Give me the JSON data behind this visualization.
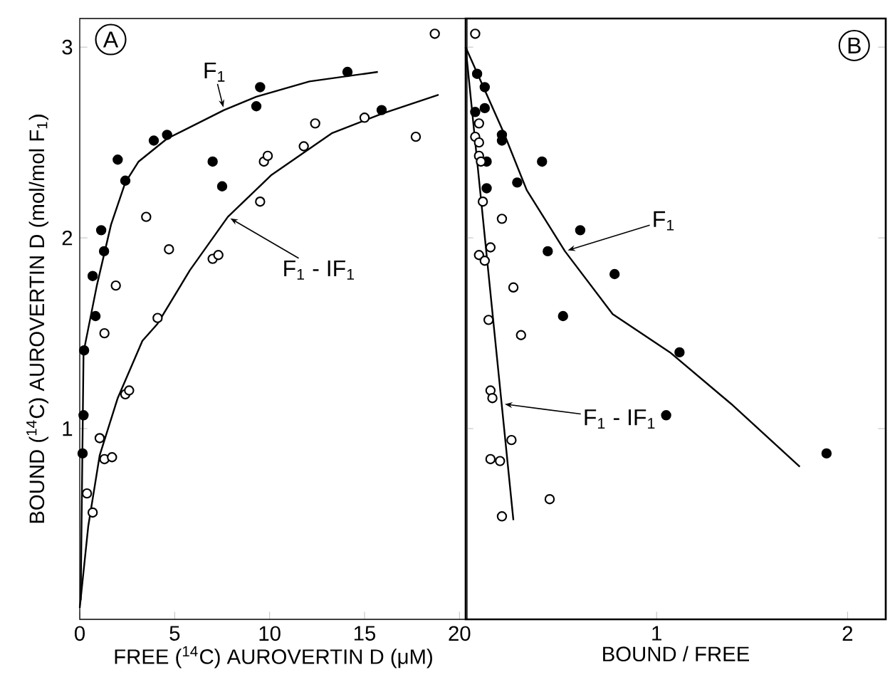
{
  "chart_data": [
    {
      "type": "scatter",
      "xlabel": "FREE ($^{14}$C) AUROVERTIN D (μM)",
      "ylabel": "BOUND ($^{14}$C) AUROVERTIN D (mol/mol F$_{1}$)",
      "marker": "circle",
      "xlim": [
        0,
        20.4
      ],
      "ylim": [
        0,
        3.15
      ],
      "xticks": [
        0,
        5,
        10,
        15,
        20
      ],
      "yticks": [
        1,
        2,
        3
      ],
      "series": [
        {
          "color": "#000000",
          "x": [
            0.23,
            0.2,
            0.15,
            0.83,
            0.68,
            1.28,
            1.13,
            2.0,
            2.4,
            3.9,
            4.6,
            7.0,
            7.5,
            9.3,
            9.5,
            14.1,
            15.9
          ],
          "values": [
            1.41,
            1.07,
            0.87,
            1.59,
            1.8,
            1.93,
            2.04,
            2.41,
            2.3,
            2.51,
            2.54,
            2.4,
            2.27,
            2.69,
            2.79,
            2.87,
            2.67
          ]
        },
        {
          "color": "#ffffff",
          "x": [
            18.7,
            3.5,
            4.7,
            1.9,
            4.1,
            1.3,
            7.0,
            7.3,
            9.5,
            9.7,
            9.9,
            11.8,
            12.4,
            15.0,
            17.7,
            2.4,
            2.6,
            1.05,
            1.3,
            1.7,
            0.38,
            0.68
          ],
          "values": [
            3.07,
            2.11,
            1.94,
            1.75,
            1.58,
            1.5,
            1.89,
            1.91,
            2.19,
            2.4,
            2.43,
            2.48,
            2.6,
            2.63,
            2.53,
            1.18,
            1.2,
            0.95,
            0.84,
            0.85,
            0.66,
            0.56
          ]
        },
        {
          "type": "line",
          "marker": "none",
          "color": "#000000",
          "x": [
            0.05,
            0.2,
            0.9,
            1.65,
            2.4,
            3.1,
            4.6,
            7.6,
            9.3,
            12.1,
            15.7
          ],
          "values": [
            0.1,
            1.4,
            1.75,
            2.07,
            2.29,
            2.4,
            2.52,
            2.67,
            2.74,
            2.82,
            2.87
          ]
        },
        {
          "type": "line",
          "marker": "none",
          "color": "#000000",
          "x": [
            0.0,
            0.45,
            1.05,
            2.0,
            3.3,
            4.1,
            5.8,
            7.8,
            10.1,
            13.3,
            15.9,
            18.9
          ],
          "values": [
            0.06,
            0.49,
            0.86,
            1.16,
            1.46,
            1.55,
            1.83,
            2.11,
            2.33,
            2.55,
            2.65,
            2.75
          ]
        }
      ],
      "annotations": [
        "A",
        {
          "text": "F$_{1}$",
          "x": 7.6,
          "y": 2.67
        },
        {
          "text": "F$_{1}$ - IF$_{1}$",
          "x": 7.8,
          "y": 2.11
        }
      ]
    },
    {
      "type": "scatter",
      "xlabel": "BOUND / FREE",
      "marker": "circle",
      "tick_labels": "x",
      "xlim": [
        0,
        2.2
      ],
      "ylim": [
        0,
        3.15
      ],
      "xticks": [
        {
          "value": 0,
          "label": null
        },
        1,
        2
      ],
      "yticks": [
        1,
        2,
        3
      ],
      "series": [
        {
          "color": "#000000",
          "x": [
            0.06,
            0.1,
            0.05,
            0.1,
            0.19,
            0.19,
            0.11,
            0.11,
            0.4,
            0.27,
            0.6,
            0.43,
            0.78,
            0.51,
            1.12,
            1.05,
            1.89
          ],
          "values": [
            2.86,
            2.79,
            2.66,
            2.68,
            2.54,
            2.51,
            2.4,
            2.26,
            2.4,
            2.29,
            2.04,
            1.93,
            1.81,
            1.59,
            1.4,
            1.07,
            0.87
          ]
        },
        {
          "color": "#ffffff",
          "x": [
            0.05,
            0.07,
            0.05,
            0.07,
            0.07,
            0.08,
            0.09,
            0.19,
            0.07,
            0.13,
            0.1,
            0.25,
            0.12,
            0.29,
            0.13,
            0.14,
            0.24,
            0.13,
            0.18,
            0.44,
            0.19
          ],
          "values": [
            3.07,
            2.6,
            2.53,
            2.5,
            2.43,
            2.4,
            2.19,
            2.1,
            1.91,
            1.95,
            1.88,
            1.74,
            1.57,
            1.49,
            1.2,
            1.16,
            0.94,
            0.84,
            0.83,
            0.63,
            0.54
          ]
        },
        {
          "type": "line",
          "marker": "none",
          "color": "#000000",
          "x": [
            0.0,
            0.2,
            0.32,
            0.52,
            0.77,
            1.07,
            1.39,
            1.75
          ],
          "values": [
            3.0,
            2.55,
            2.25,
            1.93,
            1.6,
            1.4,
            1.13,
            0.8
          ]
        },
        {
          "type": "line",
          "marker": "none",
          "color": "#000000",
          "x": [
            0.0,
            0.25
          ],
          "values": [
            3.0,
            0.52
          ]
        }
      ],
      "annotations": [
        "B",
        {
          "text": "F$_{1}$",
          "x": 0.52,
          "y": 1.93
        },
        {
          "text": "F$_{1}$ - IF$_{1}$",
          "x": 0.19,
          "y": 1.13
        }
      ]
    }
  ]
}
